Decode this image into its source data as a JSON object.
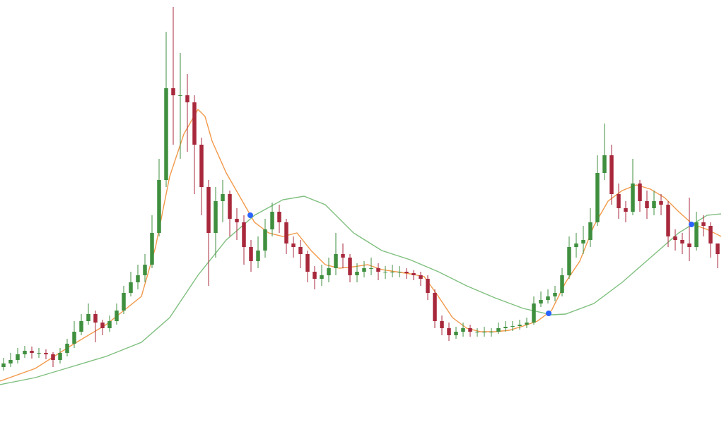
{
  "chart_data": {
    "type": "candlestick",
    "xlim": [
      -0.5,
      101.9
    ],
    "ylim": [
      0,
      605
    ],
    "up_color": "#3f8f3f",
    "down_color": "#a8283c",
    "open": [
      85,
      90,
      95,
      103,
      108,
      105,
      105,
      103,
      95,
      105,
      118,
      135,
      150,
      160,
      148,
      140,
      150,
      165,
      190,
      205,
      215,
      230,
      275,
      350,
      480,
      470,
      470,
      460,
      400,
      340,
      275,
      320,
      330,
      295,
      290,
      255,
      235,
      250,
      280,
      305,
      290,
      260,
      255,
      245,
      220,
      210,
      215,
      225,
      245,
      240,
      215,
      220,
      225,
      225,
      220,
      220,
      220,
      220,
      218,
      215,
      210,
      190,
      150,
      140,
      130,
      135,
      140,
      135,
      135,
      135,
      135,
      140,
      142,
      143,
      145,
      148,
      175,
      180,
      185,
      190,
      215,
      255,
      260,
      265,
      290,
      360,
      385,
      330,
      310,
      305,
      345,
      320,
      310,
      320,
      315,
      270,
      265,
      260,
      255,
      290,
      285,
      260
    ],
    "high": [
      98,
      105,
      112,
      115,
      114,
      112,
      110,
      106,
      112,
      125,
      150,
      160,
      175,
      165,
      152,
      158,
      175,
      200,
      220,
      230,
      245,
      300,
      380,
      560,
      595,
      530,
      500,
      470,
      410,
      350,
      340,
      350,
      335,
      310,
      300,
      265,
      270,
      295,
      318,
      315,
      295,
      270,
      265,
      250,
      228,
      230,
      240,
      275,
      260,
      245,
      232,
      235,
      240,
      232,
      228,
      230,
      228,
      225,
      222,
      220,
      215,
      195,
      158,
      148,
      142,
      148,
      145,
      140,
      142,
      140,
      148,
      150,
      150,
      152,
      155,
      185,
      192,
      195,
      200,
      225,
      270,
      275,
      285,
      310,
      385,
      430,
      400,
      345,
      320,
      380,
      350,
      335,
      335,
      330,
      320,
      280,
      275,
      325,
      305,
      300,
      290,
      260
    ],
    "low": [
      80,
      85,
      90,
      98,
      97,
      98,
      96,
      85,
      90,
      100,
      112,
      130,
      145,
      120,
      130,
      135,
      145,
      160,
      185,
      195,
      205,
      225,
      270,
      340,
      400,
      380,
      390,
      330,
      300,
      200,
      240,
      290,
      270,
      265,
      230,
      220,
      225,
      240,
      270,
      275,
      245,
      240,
      225,
      205,
      195,
      200,
      205,
      215,
      225,
      205,
      205,
      212,
      215,
      208,
      210,
      212,
      212,
      210,
      208,
      200,
      180,
      140,
      130,
      122,
      125,
      128,
      128,
      128,
      128,
      128,
      132,
      135,
      136,
      138,
      140,
      145,
      170,
      175,
      178,
      185,
      210,
      240,
      245,
      255,
      285,
      350,
      315,
      295,
      290,
      300,
      305,
      295,
      300,
      300,
      255,
      250,
      245,
      235,
      250,
      270,
      240,
      225
    ],
    "close": [
      90,
      95,
      103,
      108,
      105,
      105,
      103,
      95,
      105,
      118,
      135,
      150,
      160,
      148,
      140,
      150,
      165,
      190,
      205,
      215,
      230,
      275,
      350,
      480,
      470,
      470,
      460,
      400,
      340,
      275,
      320,
      330,
      295,
      290,
      255,
      235,
      250,
      280,
      305,
      290,
      260,
      255,
      245,
      220,
      210,
      215,
      225,
      245,
      240,
      215,
      220,
      225,
      225,
      220,
      220,
      220,
      220,
      218,
      215,
      210,
      190,
      150,
      140,
      130,
      135,
      140,
      135,
      135,
      135,
      135,
      140,
      142,
      143,
      145,
      148,
      175,
      180,
      185,
      190,
      215,
      255,
      260,
      265,
      290,
      360,
      385,
      330,
      310,
      305,
      345,
      320,
      310,
      320,
      315,
      270,
      265,
      260,
      255,
      290,
      285,
      260,
      245
    ],
    "lines": [
      {
        "color": "#f2994a",
        "x": [
          -0.5,
          4.5,
          9.5,
          14.5,
          19.5,
          21.5,
          23.5,
          25.5,
          27.5,
          28.5,
          29.5,
          31.5,
          33.5,
          35.5,
          37.5,
          39.5,
          41.5,
          43.5,
          45.5,
          47.5,
          49.5,
          51.5,
          53.5,
          55.5,
          57.5,
          59.5,
          61.5,
          63.5,
          65.5,
          67.5,
          69.5,
          71.5,
          73.5,
          75.5,
          77.5,
          79.5,
          81.5,
          83.5,
          85.5,
          87.5,
          89.5,
          91.5,
          93.5,
          95.5,
          97.5,
          99.5,
          101.5
        ],
        "values": [
          65,
          83,
          115,
          145,
          185,
          255,
          355,
          415,
          450,
          440,
          405,
          360,
          325,
          290,
          275,
          270,
          275,
          250,
          230,
          225,
          227,
          230,
          223,
          220,
          217,
          213,
          185,
          155,
          140,
          135,
          135,
          137,
          143,
          150,
          165,
          205,
          235,
          285,
          320,
          335,
          343,
          337,
          325,
          305,
          287,
          280,
          270
        ]
      },
      {
        "color": "#7fbf7f",
        "x": [
          -0.5,
          4.5,
          9.5,
          14.5,
          19.5,
          23.5,
          27.5,
          31.5,
          35.5,
          39.5,
          42.5,
          45.5,
          49.5,
          53.5,
          57.5,
          61.5,
          65.5,
          69.5,
          73.5,
          77.5,
          79.5,
          83.5,
          87.5,
          91.5,
          95.5,
          99.5,
          101.5
        ],
        "values": [
          60,
          70,
          85,
          100,
          120,
          155,
          215,
          265,
          300,
          322,
          327,
          315,
          275,
          250,
          237,
          220,
          200,
          183,
          168,
          159,
          160,
          175,
          205,
          240,
          275,
          300,
          302
        ]
      }
    ],
    "markers": {
      "color": "#2962ff",
      "x": [
        34.9,
        77.1,
        97.3
      ],
      "values": [
        300,
        161,
        287
      ]
    }
  }
}
